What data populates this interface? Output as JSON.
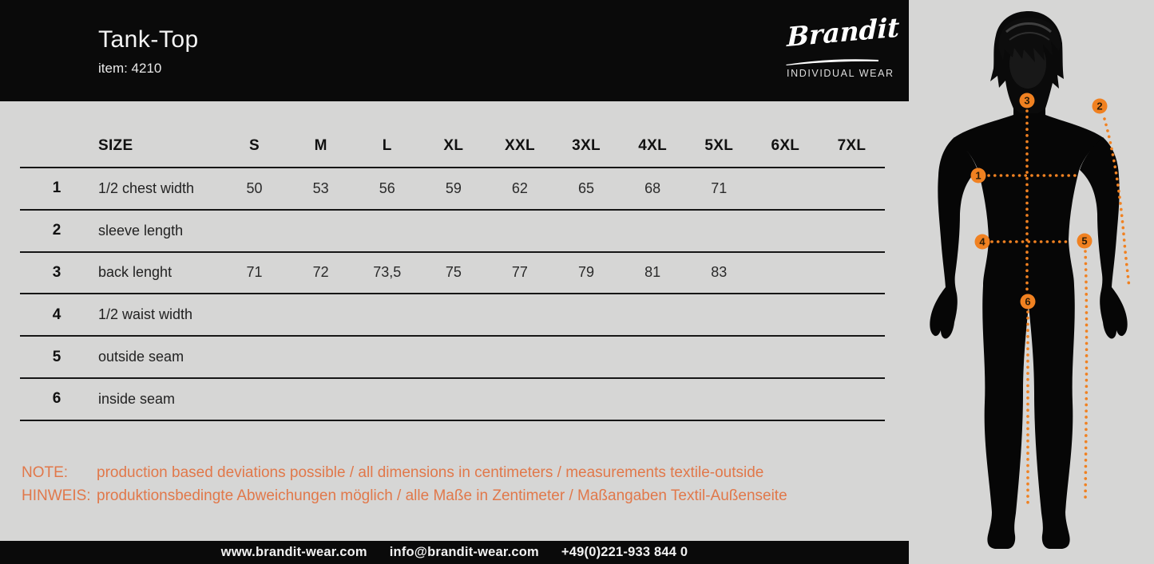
{
  "header": {
    "title": "Tank-Top",
    "item": "item: 4210",
    "brand": {
      "name": "Brandit",
      "tagline": "INDIVIDUAL WEAR"
    }
  },
  "table": {
    "size_header": "SIZE",
    "sizes": [
      "S",
      "M",
      "L",
      "XL",
      "XXL",
      "3XL",
      "4XL",
      "5XL",
      "6XL",
      "7XL"
    ],
    "rows": [
      {
        "num": "1",
        "label": "1/2 chest width",
        "values": [
          "50",
          "53",
          "56",
          "59",
          "62",
          "65",
          "68",
          "71",
          "",
          ""
        ]
      },
      {
        "num": "2",
        "label": "sleeve length",
        "values": [
          "",
          "",
          "",
          "",
          "",
          "",
          "",
          "",
          "",
          ""
        ]
      },
      {
        "num": "3",
        "label": "back lenght",
        "values": [
          "71",
          "72",
          "73,5",
          "75",
          "77",
          "79",
          "81",
          "83",
          "",
          ""
        ]
      },
      {
        "num": "4",
        "label": "1/2 waist width",
        "values": [
          "",
          "",
          "",
          "",
          "",
          "",
          "",
          "",
          "",
          ""
        ]
      },
      {
        "num": "5",
        "label": "outside seam",
        "values": [
          "",
          "",
          "",
          "",
          "",
          "",
          "",
          "",
          "",
          ""
        ]
      },
      {
        "num": "6",
        "label": "inside seam",
        "values": [
          "",
          "",
          "",
          "",
          "",
          "",
          "",
          "",
          "",
          ""
        ]
      }
    ]
  },
  "notes": [
    {
      "label": "NOTE:",
      "text": "production based deviations possible / all dimensions in centimeters / measurements textile-outside"
    },
    {
      "label": "HINWEIS:",
      "text": "produktionsbedingte Abweichungen möglich / alle Maße in Zentimeter / Maßangaben Textil-Außenseite"
    }
  ],
  "footer": {
    "website": "www.brandit-wear.com",
    "email": "info@brandit-wear.com",
    "phone": "+49(0)221-933 844 0"
  },
  "figure": {
    "points": [
      "1",
      "2",
      "3",
      "4",
      "5",
      "6"
    ]
  },
  "colors": {
    "accent_orange": "#f08121",
    "note_orange": "#e1784a",
    "background": "#d6d6d5",
    "band_black": "#0a0a0a"
  }
}
